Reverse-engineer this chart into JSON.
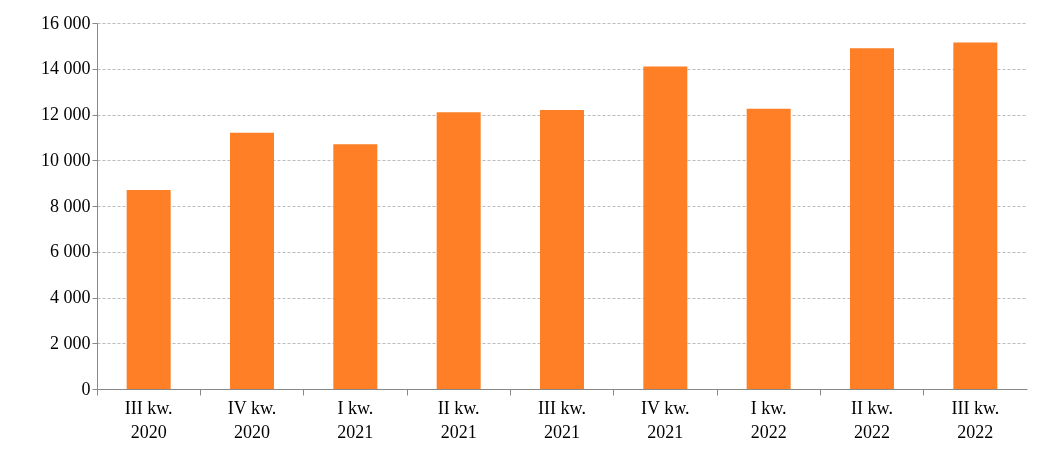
{
  "chart_data": {
    "type": "bar",
    "categories": [
      "III kw. 2020",
      "IV kw. 2020",
      "I kw. 2021",
      "II kw. 2021",
      "III kw. 2021",
      "IV kw. 2021",
      "I kw. 2022",
      "II kw. 2022",
      "III kw. 2022"
    ],
    "values": [
      8700,
      11200,
      10700,
      12100,
      12200,
      14100,
      12250,
      14900,
      15150
    ],
    "color": "#ff7f27",
    "ylim": [
      0,
      16000
    ],
    "yticks": [
      0,
      {
        "value": 2000,
        "label": "2 000"
      },
      {
        "value": 4000,
        "label": "4 000"
      },
      {
        "value": 6000,
        "label": "6 000"
      },
      {
        "value": 8000,
        "label": "8 000"
      },
      {
        "value": 10000,
        "label": "10 000"
      },
      {
        "value": 12000,
        "label": "12 000"
      },
      {
        "value": 14000,
        "label": "14 000"
      },
      {
        "value": 16000,
        "label": "16 000"
      }
    ],
    "grid": "y"
  }
}
